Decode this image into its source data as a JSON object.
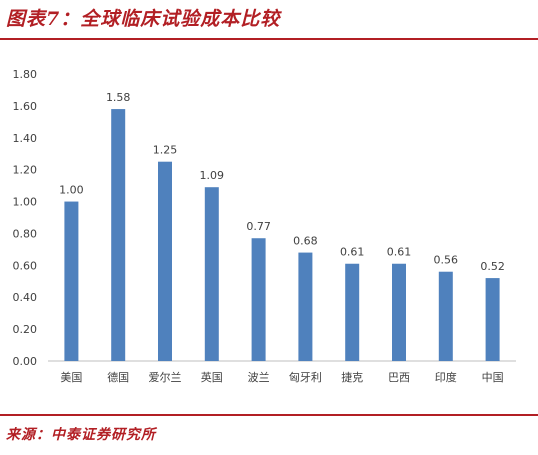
{
  "header": {
    "title": "图表7：全球临床试验成本比较"
  },
  "footer": {
    "source": "来源：中泰证券研究所"
  },
  "colors": {
    "accent": "#b21f24",
    "bar": "#4f81bd",
    "axis": "#bfbfbf"
  },
  "chart_data": {
    "type": "bar",
    "categories": [
      "美国",
      "德国",
      "爱尔兰",
      "英国",
      "波兰",
      "匈牙利",
      "捷克",
      "巴西",
      "印度",
      "中国"
    ],
    "values": [
      1.0,
      1.58,
      1.25,
      1.09,
      0.77,
      0.68,
      0.61,
      0.61,
      0.56,
      0.52
    ],
    "value_labels": [
      "1.00",
      "1.58",
      "1.25",
      "1.09",
      "0.77",
      "0.68",
      "0.61",
      "0.61",
      "0.56",
      "0.52"
    ],
    "yticks": [
      "0.00",
      "0.20",
      "0.40",
      "0.60",
      "0.80",
      "1.00",
      "1.20",
      "1.40",
      "1.60",
      "1.80"
    ],
    "ylim": [
      0,
      1.8
    ],
    "grid": false,
    "legend": "none"
  }
}
